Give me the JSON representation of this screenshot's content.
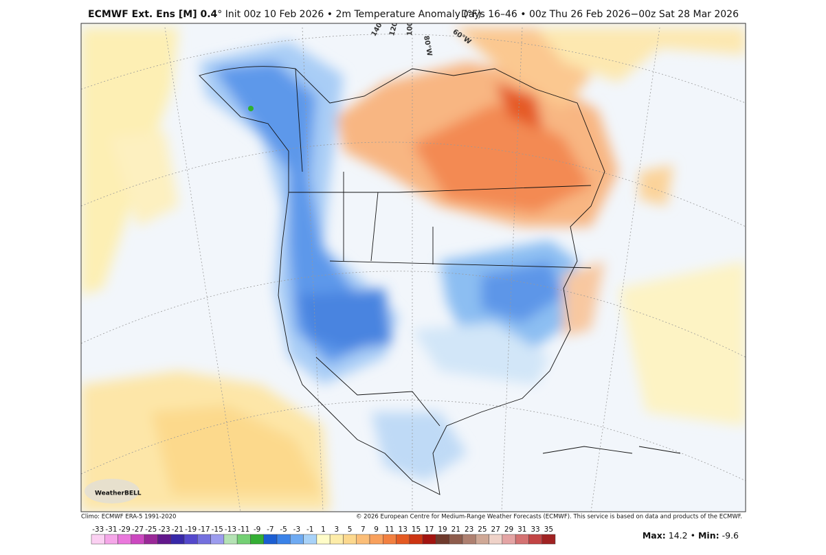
{
  "header": {
    "model": "ECMWF Ext. Ens [M] 0.4",
    "details": "° Init 00z 10 Feb 2026 • 2m Temperature Anomaly (°F)",
    "valid": "Days 16–46 • 00z Thu 26 Feb 2026−00z Sat 28 Mar 2026"
  },
  "map": {
    "longitude_labels": [
      "140°W",
      "120°W",
      "100°W",
      "80°W",
      "60°W"
    ],
    "logo": "WeatherBELL"
  },
  "footer": {
    "climo": "Climo: ECMWF ERA-5 1991-2020",
    "copyright": "© 2026 European Centre for Medium-Range Weather Forecasts (ECMWF). This service is based on data and products of the ECMWF."
  },
  "colorbar": {
    "labels": [
      -33,
      -31,
      -29,
      -27,
      -25,
      -23,
      -21,
      -19,
      -17,
      -15,
      -13,
      -11,
      -9,
      -7,
      -5,
      -3,
      -1,
      1,
      3,
      5,
      7,
      9,
      11,
      13,
      15,
      17,
      19,
      21,
      23,
      25,
      27,
      29,
      31,
      33,
      35
    ],
    "colors": [
      "#fbd0f2",
      "#f5a6e8",
      "#ea78dc",
      "#cc48c0",
      "#9a2898",
      "#62188c",
      "#3828a8",
      "#5448cc",
      "#7470de",
      "#9c9cee",
      "#b4e2b4",
      "#74d074",
      "#34ae34",
      "#1c5ed2",
      "#3a82e8",
      "#6eaaf2",
      "#a8d2f8",
      "#fffcc8",
      "#fdeca8",
      "#fcd88e",
      "#fbbe78",
      "#f8a05c",
      "#f28040",
      "#e45a22",
      "#cc3412",
      "#a21410",
      "#6e3a2c",
      "#8e5c4c",
      "#ae8070",
      "#cfa896",
      "#efd2c8",
      "#e4a4a4",
      "#d47272",
      "#c24444",
      "#a02222"
    ]
  },
  "stats": {
    "max_label": "Max:",
    "max": 14.2,
    "separator": "•",
    "min_label": "Min:",
    "min": -9.6
  }
}
